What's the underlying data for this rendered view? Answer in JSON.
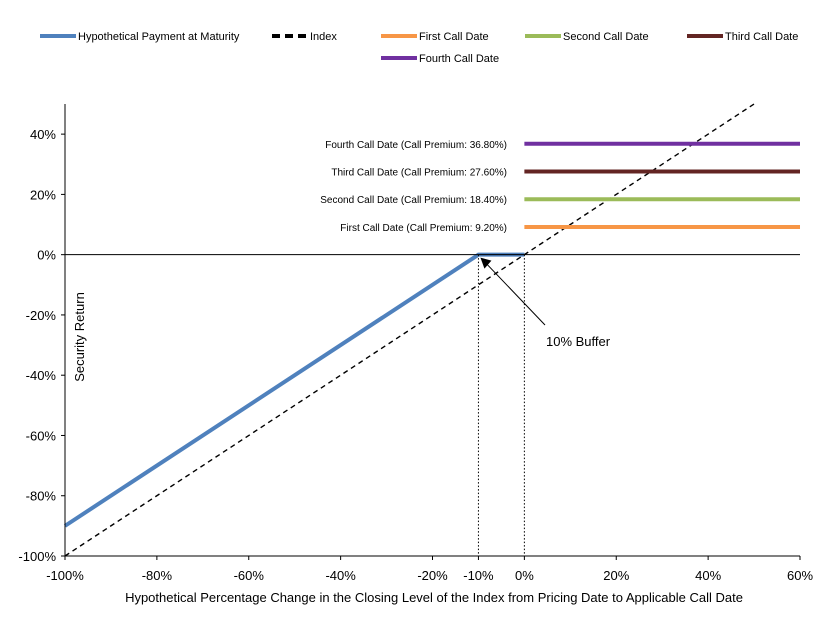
{
  "chart_data": {
    "type": "line",
    "xlabel": "Hypothetical Percentage Change in the Closing Level of the Index from Pricing Date to Applicable Call Date",
    "ylabel": "Security Return",
    "xlim": [
      -100,
      60
    ],
    "ylim": [
      -100,
      50
    ],
    "x_ticks": [
      "-100%",
      "-80%",
      "-60%",
      "-40%",
      "-20%",
      "-10%",
      "0%",
      "20%",
      "40%",
      "60%"
    ],
    "x_tick_values": [
      -100,
      -80,
      -60,
      -40,
      -20,
      -10,
      0,
      20,
      40,
      60
    ],
    "y_ticks": [
      "-100%",
      "-80%",
      "-60%",
      "-40%",
      "-20%",
      "0%",
      "20%",
      "40%"
    ],
    "y_tick_values": [
      -100,
      -80,
      -60,
      -40,
      -20,
      0,
      20,
      40
    ],
    "legend_position": "top",
    "series": [
      {
        "name": "Hypothetical Payment at Maturity",
        "color": "#4f81bd",
        "style": "solid",
        "x": [
          -100,
          -10,
          0
        ],
        "y": [
          -90,
          0,
          0
        ]
      },
      {
        "name": "Index",
        "color": "#000000",
        "style": "dashed",
        "x": [
          -100,
          50
        ],
        "y": [
          -100,
          50
        ]
      },
      {
        "name": "First Call Date",
        "color": "#f79646",
        "style": "solid",
        "x": [
          0,
          60
        ],
        "y": [
          9.2,
          9.2
        ]
      },
      {
        "name": "Second Call Date",
        "color": "#9bbb59",
        "style": "solid",
        "x": [
          0,
          60
        ],
        "y": [
          18.4,
          18.4
        ]
      },
      {
        "name": "Third Call Date",
        "color": "#632523",
        "style": "solid",
        "x": [
          0,
          60
        ],
        "y": [
          27.6,
          27.6
        ]
      },
      {
        "name": "Fourth Call Date",
        "color": "#7030a0",
        "style": "solid",
        "x": [
          0,
          60
        ],
        "y": [
          36.8,
          36.8
        ]
      }
    ],
    "annotations": {
      "first": "First Call Date (Call Premium: 9.20%)",
      "second": "Second Call Date (Call Premium: 18.40%)",
      "third": "Third Call Date (Call Premium: 27.60%)",
      "fourth": "Fourth Call Date (Call Premium: 36.80%)",
      "buffer": "10% Buffer"
    },
    "annotation_values": {
      "first": 9.2,
      "second": 18.4,
      "third": 27.6,
      "fourth": 36.8,
      "buffer_x": -10
    }
  }
}
